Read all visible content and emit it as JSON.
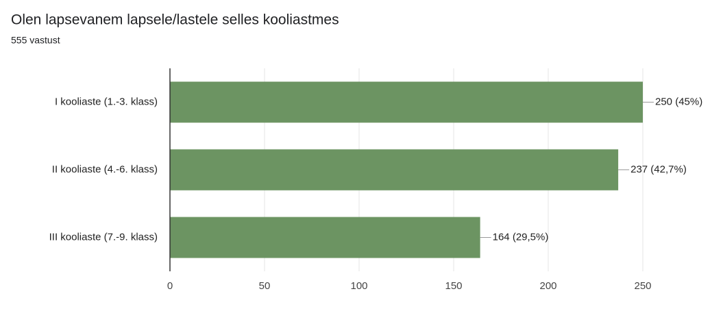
{
  "chart_data": {
    "type": "bar",
    "orientation": "horizontal",
    "title": "Olen lapsevanem lapsele/lastele selles kooliastmes",
    "subtitle": "555 vastust",
    "categories": [
      "I kooliaste (1.-3. klass)",
      "II kooliaste (4.-6. klass)",
      "III kooliaste (7.-9. klass)"
    ],
    "values": [
      250,
      237,
      164
    ],
    "value_labels": [
      "250 (45%)",
      "237 (42,7%)",
      "164 (29,5%)"
    ],
    "color": "#6c9462",
    "xlim": [
      0,
      250
    ],
    "xticks": [
      0,
      50,
      100,
      150,
      200,
      250
    ],
    "grid": true
  }
}
